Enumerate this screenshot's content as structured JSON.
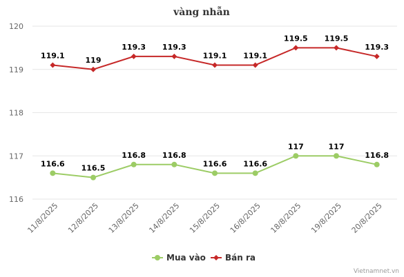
{
  "chart_data": {
    "type": "line",
    "title": "vàng nhẫn",
    "xlabel": "",
    "ylabel": "",
    "categories": [
      "11/8/2025",
      "12/8/2025",
      "13/8/2025",
      "14/8/2025",
      "15/8/2025",
      "16/8/2025",
      "18/8/2025",
      "19/8/2025",
      "20/8/2025"
    ],
    "ylim": [
      116,
      120
    ],
    "yticks": [
      116,
      117,
      118,
      119,
      120
    ],
    "grid": true,
    "legend_position": "bottom",
    "series": [
      {
        "name": "Mua vào",
        "color": "#9ccc65",
        "marker": "circle",
        "values": [
          116.6,
          116.5,
          116.8,
          116.8,
          116.6,
          116.6,
          117,
          117,
          116.8
        ]
      },
      {
        "name": "Bán ra",
        "color": "#c62828",
        "marker": "diamond",
        "values": [
          119.1,
          119,
          119.3,
          119.3,
          119.1,
          119.1,
          119.5,
          119.5,
          119.3
        ]
      }
    ]
  },
  "credit": "Vietnamnet.vn"
}
